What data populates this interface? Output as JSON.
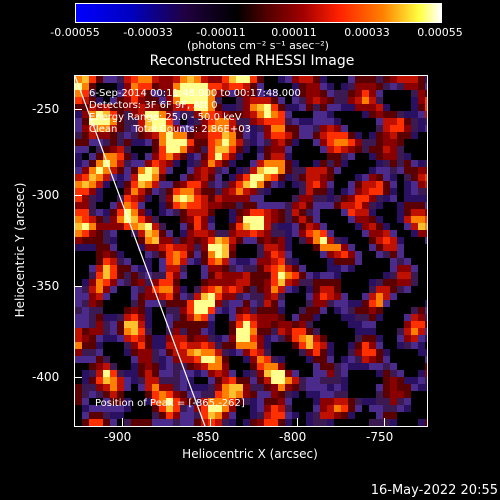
{
  "colorbar": {
    "tick_labels": [
      "-0.00055",
      "-0.00033",
      "-0.00011",
      "0.00011",
      "0.00033",
      "0.00055"
    ],
    "unit_label": "(photons cm⁻² s⁻¹ asec⁻²)"
  },
  "plot": {
    "title": "Reconstructed RHESSI Image",
    "info_lines": [
      "6-Sep-2014 00:11:48.000 to 00:17:48.000",
      "Detectors: 3F 6F 9F, Att 0",
      "Energy Range: 25.0 - 50.0 keV",
      "Clean     Total Counts: 2.86E+03"
    ],
    "peak_label": "Position of Peak = [-865,-262]"
  },
  "axes": {
    "xlabel": "Heliocentric X (arcsec)",
    "ylabel": "Heliocentric Y (arcsec)",
    "x_ticks": [
      "-900",
      "-850",
      "-800",
      "-750"
    ],
    "y_ticks": [
      "-250",
      "-300",
      "-350",
      "-400"
    ]
  },
  "footer": {
    "timestamp": "16-May-2022 20:55"
  }
}
